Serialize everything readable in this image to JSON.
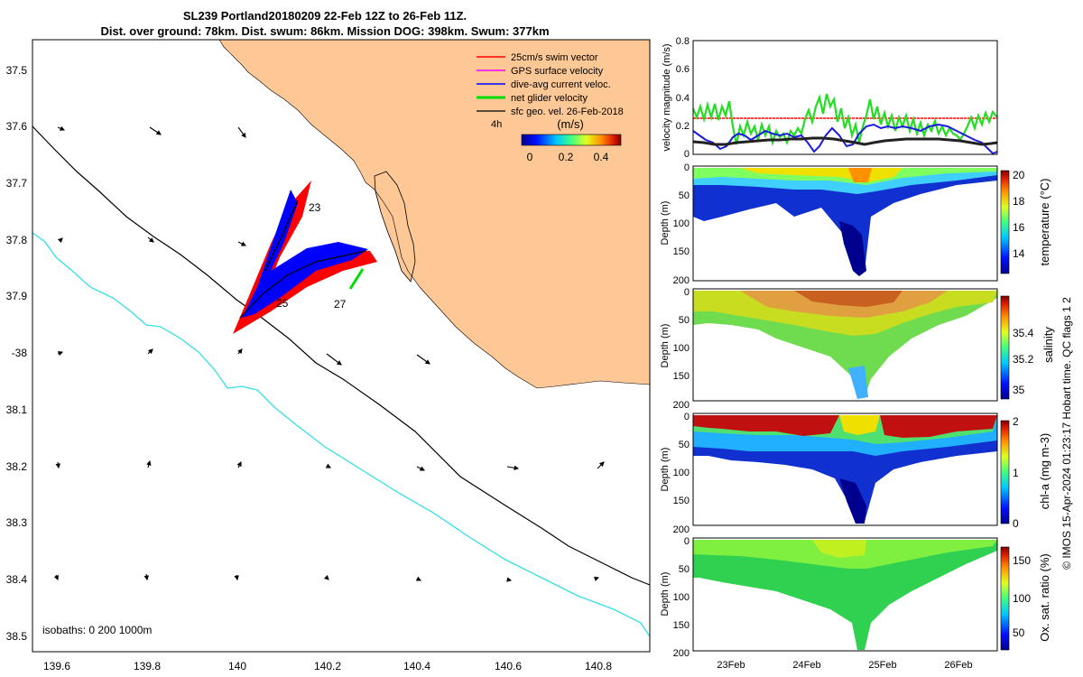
{
  "title": {
    "line1": "SL239 Portland20180209 22-Feb 12Z to 26-Feb 11Z.",
    "line2": "Dist. over ground: 78km. Dist. swum: 86km. Mission DOG: 398km. Swum: 377km"
  },
  "map": {
    "lat_ticks": [
      "37.5",
      "37.6",
      "37.7",
      "37.8",
      "37.9",
      "-38",
      "38.1",
      "38.2",
      "38.3",
      "38.4",
      "38.5"
    ],
    "lon_ticks": [
      "139.6",
      "139.8",
      "140",
      "140.2",
      "140.4",
      "140.6",
      "140.8"
    ],
    "legend": [
      {
        "label": "25cm/s swim vector",
        "color": "#ff0000"
      },
      {
        "label": "GPS surface velocity",
        "color": "#ff00ff"
      },
      {
        "label": "dive-avg current veloc.",
        "color": "#0000ff"
      },
      {
        "label": "net glider velocity",
        "color": "#00dd00"
      },
      {
        "label": "sfc geo. vel. 26-Feb-2018",
        "color": "#000000"
      }
    ],
    "legend_4h": "4h",
    "colorbar_title": "(m/s)",
    "colorbar_ticks": [
      "0",
      "0.2",
      "0.4"
    ],
    "day_labels": [
      "23",
      "25",
      "27"
    ],
    "isobaths_label": "isobaths: 0   200  1000m",
    "land_color": "#fdc896",
    "isobath_200_color": "#000000",
    "isobath_1000_color": "#33e0e6"
  },
  "velocity_panel": {
    "ylabel": "velocity magnitude (m/s)",
    "yticks": [
      "0",
      "0.2",
      "0.4",
      "0.6",
      "0.8"
    ],
    "ylim": [
      0,
      0.8
    ]
  },
  "sections": [
    {
      "label": "temperature (°C)",
      "ticks": [
        "20",
        "18",
        "16",
        "14"
      ]
    },
    {
      "label": "salinity",
      "ticks": [
        "35.4",
        "35.2",
        "35"
      ]
    },
    {
      "label": "chl-a (mg m-3)",
      "ticks": [
        "2",
        "1",
        "0"
      ]
    },
    {
      "label": "Ox. sat. ratio (%)",
      "ticks": [
        "150",
        "100",
        "50"
      ]
    }
  ],
  "depth_label": "Depth (m)",
  "depth_ticks": [
    "0",
    "50",
    "100",
    "150",
    "200"
  ],
  "time_ticks": [
    "23Feb",
    "24Feb",
    "25Feb",
    "26Feb"
  ],
  "credit": "© IMOS 15-Apr-2024 01:23:17 Hobart time. QC flags 1  2"
}
